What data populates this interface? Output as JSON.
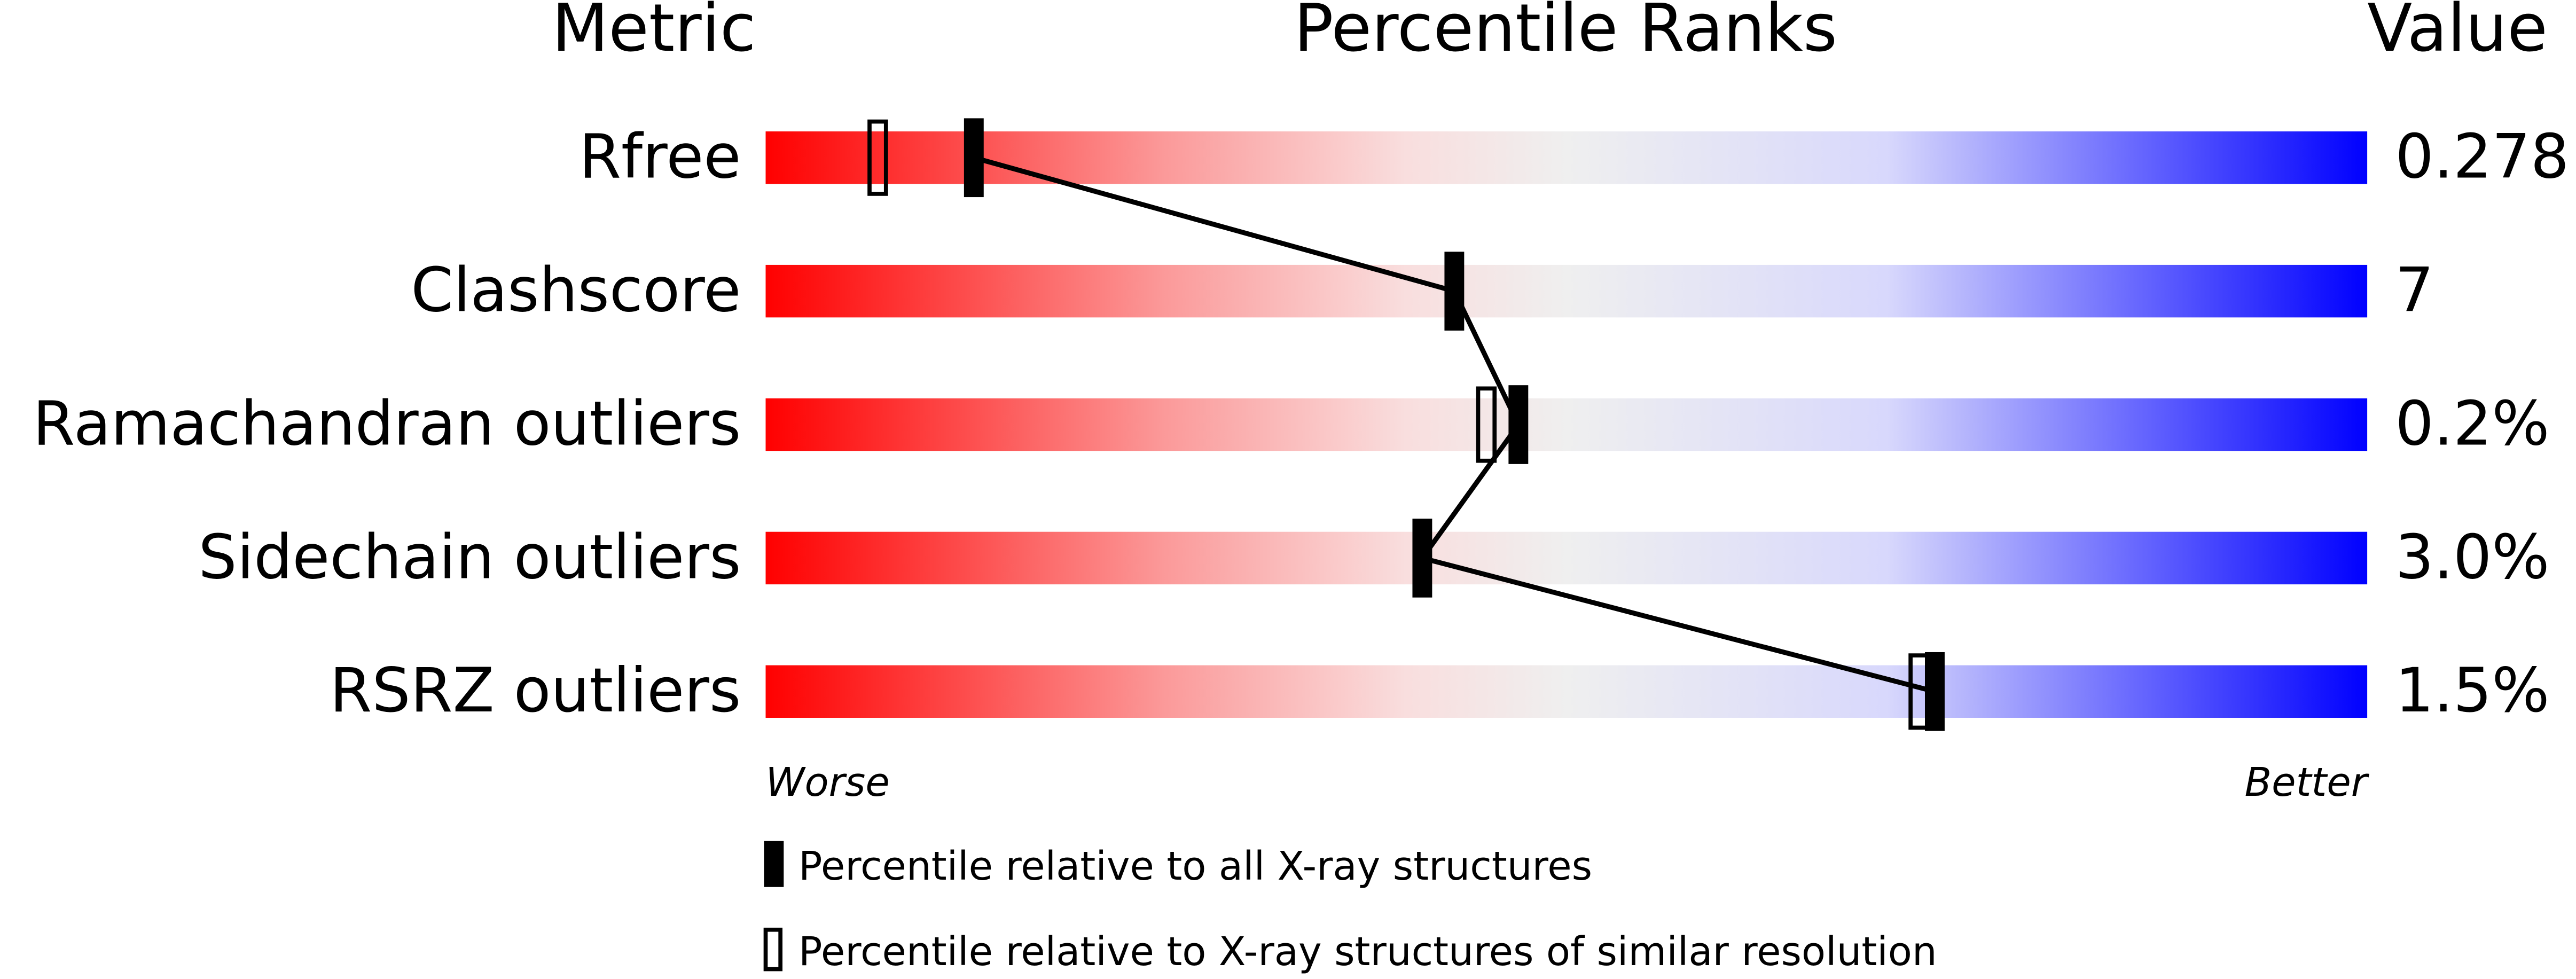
{
  "chart_data": {
    "type": "percentile",
    "headers": {
      "metric": "Metric",
      "ranks": "Percentile Ranks",
      "value": "Value"
    },
    "rows": [
      {
        "name": "Rfree",
        "value": "0.278",
        "percentile_all": 13,
        "percentile_similar": 7
      },
      {
        "name": "Clashscore",
        "value": "7",
        "percentile_all": 43,
        "percentile_similar": null
      },
      {
        "name": "Ramachandran outliers",
        "value": "0.2%",
        "percentile_all": 47,
        "percentile_similar": 45
      },
      {
        "name": "Sidechain outliers",
        "value": "3.0%",
        "percentile_all": 41,
        "percentile_similar": null
      },
      {
        "name": "RSRZ outliers",
        "value": "1.5%",
        "percentile_all": 73,
        "percentile_similar": 72
      }
    ],
    "axis_labels": {
      "worse": "Worse",
      "better": "Better"
    },
    "legend": {
      "all": "Percentile relative to all X-ray structures",
      "similar": "Percentile relative to X-ray structures of similar resolution"
    }
  }
}
